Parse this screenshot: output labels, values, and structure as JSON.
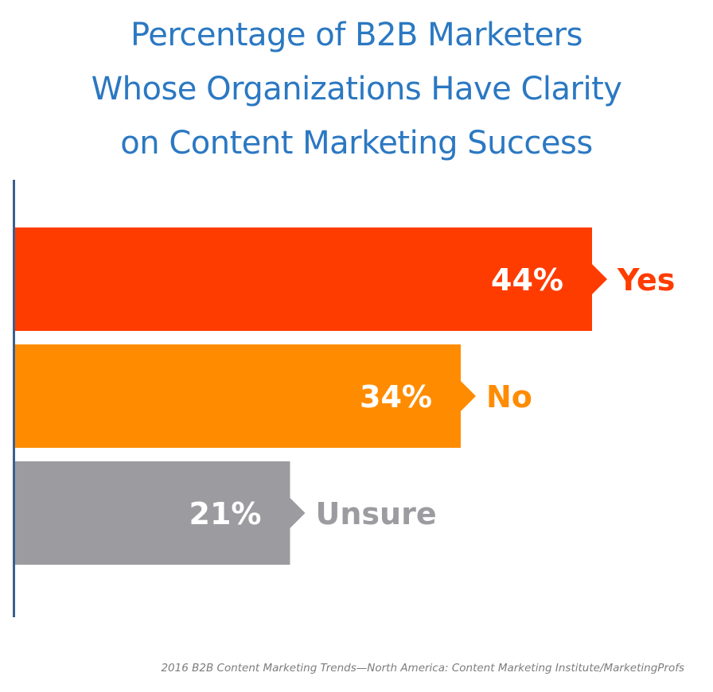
{
  "chart_data": {
    "type": "bar",
    "orientation": "horizontal",
    "title": [
      "Percentage of B2B Marketers",
      "Whose Organizations Have Clarity",
      "on Content Marketing Success"
    ],
    "categories": [
      "Yes",
      "No",
      "Unsure"
    ],
    "values": [
      44,
      34,
      21
    ],
    "value_labels": [
      "44%",
      "34%",
      "21%"
    ],
    "colors": [
      "#ff3c00",
      "#ff8c00",
      "#9c9ca0"
    ],
    "label_colors": [
      "#ff3c00",
      "#ff8c00",
      "#9c9ca0"
    ],
    "axis_color": "#3b5f8f",
    "grid": false,
    "legend": "none",
    "source": "2016 B2B Content Marketing Trends—North America: Content Marketing Institute/MarketingProfs"
  }
}
